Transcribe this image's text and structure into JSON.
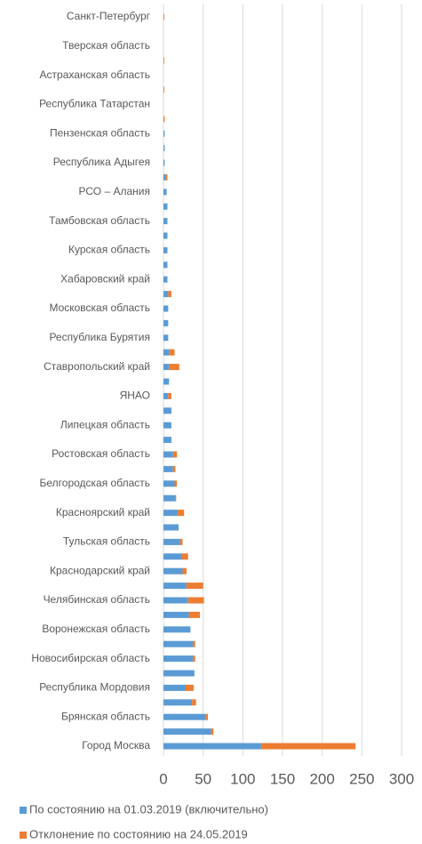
{
  "chart_data": {
    "type": "bar",
    "orientation": "horizontal",
    "stacked": true,
    "categories": [
      "Санкт-Петербург",
      null,
      "Тверская область",
      null,
      "Астраханская область",
      null,
      "Республика Татарстан",
      null,
      "Пензенская область",
      null,
      "Республика Адыгея",
      null,
      "РСО – Алания",
      null,
      "Тамбовская область",
      null,
      "Курская область",
      null,
      "Хабаровский край",
      null,
      "Московская область",
      null,
      "Республика Бурятия",
      null,
      "Ставропольский край",
      null,
      "ЯНАО",
      null,
      "Липецкая область",
      null,
      "Ростовская область",
      null,
      "Белгородская область",
      null,
      "Красноярский край",
      null,
      "Тульская область",
      null,
      "Краснодарский край",
      null,
      "Челябинская область",
      null,
      "Воронежская область",
      null,
      "Новосибирская область",
      null,
      "Республика Мордовия",
      null,
      "Брянская область",
      null,
      "Город Москва"
    ],
    "series": [
      {
        "name": "По состоянию на 01.03.2019 (включительно)",
        "color": "#5b9bd5",
        "values": [
          0,
          0,
          0,
          0,
          0,
          0,
          0,
          0,
          1.5,
          1.5,
          1.5,
          3,
          4,
          5,
          5,
          5,
          5,
          5,
          5,
          6,
          6,
          6,
          6,
          7,
          7,
          7,
          6,
          10,
          10,
          10,
          12,
          12,
          14,
          15,
          18,
          19,
          21,
          23,
          24,
          29,
          31,
          32,
          34,
          37,
          37,
          39,
          28,
          36,
          53,
          60,
          123
        ]
      },
      {
        "name": "Отклонение по состоянию на 24.05.2019",
        "color": "#ed7d31",
        "values": [
          1,
          0,
          0,
          1,
          0,
          1,
          0,
          1.5,
          0,
          0,
          0,
          2,
          0,
          0,
          0,
          0,
          0,
          0,
          0,
          4,
          0,
          0,
          0,
          7,
          13,
          0,
          4,
          0,
          0,
          0,
          5,
          3,
          3,
          1,
          8,
          0,
          3,
          8,
          5,
          21,
          20,
          14,
          0,
          3,
          3,
          0,
          10,
          5,
          3,
          3,
          119
        ]
      }
    ],
    "xlim": [
      0,
      300
    ],
    "xticks": [
      0,
      50,
      100,
      150,
      200,
      250,
      300
    ],
    "grid": true,
    "legend": "bottom"
  }
}
